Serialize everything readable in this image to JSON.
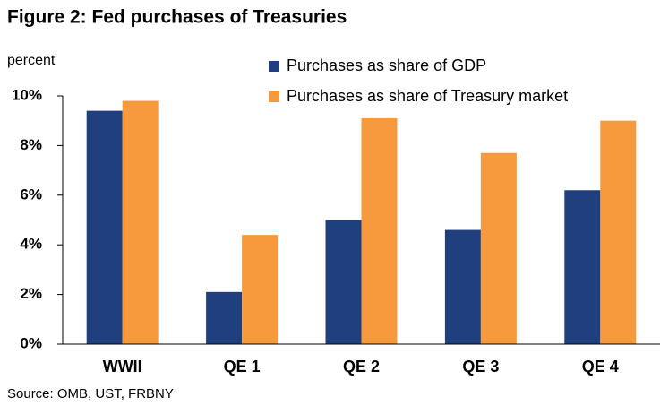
{
  "chart_data": {
    "type": "bar",
    "title": "Figure 2: Fed purchases of Treasuries",
    "y_label": "percent",
    "source": "Source: OMB, UST, FRBNY",
    "categories": [
      "WWII",
      "QE 1",
      "QE 2",
      "QE 3",
      "QE 4"
    ],
    "series": [
      {
        "name": "Purchases as share of GDP",
        "color": "#1f3f7f",
        "values": [
          9.4,
          2.1,
          5.0,
          4.6,
          6.2
        ]
      },
      {
        "name": "Purchases as share of Treasury market",
        "color": "#f79a3e",
        "values": [
          9.8,
          4.4,
          9.1,
          7.7,
          9.0
        ]
      }
    ],
    "ylim": [
      0,
      10
    ],
    "yticks": [
      {
        "value": 0,
        "label": "0%"
      },
      {
        "value": 2,
        "label": "2%"
      },
      {
        "value": 4,
        "label": "4%"
      },
      {
        "value": 6,
        "label": "6%"
      },
      {
        "value": 8,
        "label": "8%"
      },
      {
        "value": 10,
        "label": "10%"
      }
    ],
    "legend": "top-right"
  }
}
